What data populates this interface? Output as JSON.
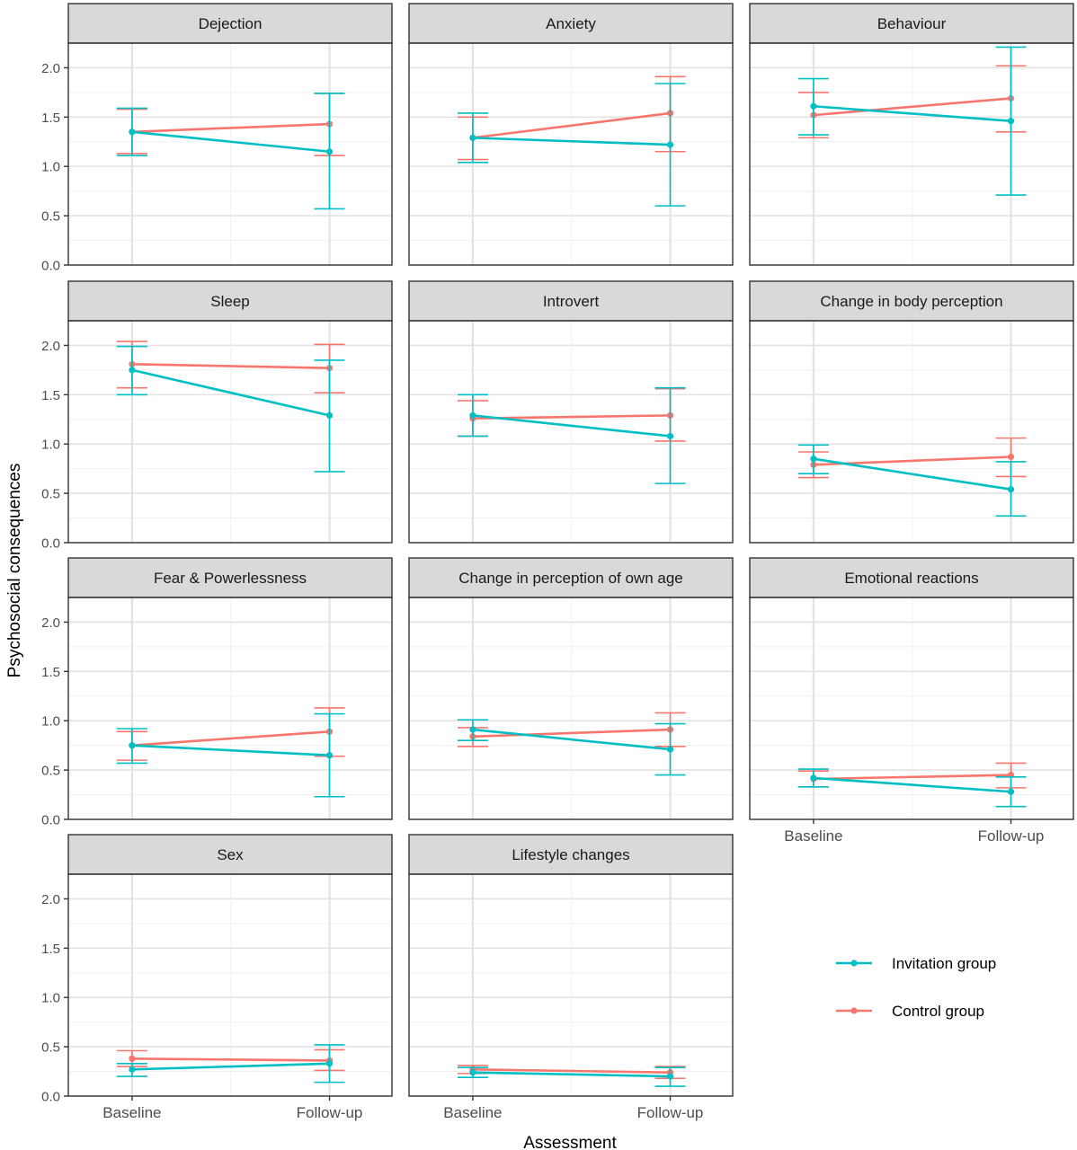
{
  "chart_data": {
    "type": "line",
    "layout": "faceted-grid-4x3",
    "ylabel": "Psychosocial consequences",
    "xlabel": "Assessment",
    "categories": [
      "Baseline",
      "Follow-up"
    ],
    "ylim": [
      0,
      2.25
    ],
    "yticks": [
      "0.0",
      "0.5",
      "1.0",
      "1.5",
      "2.0"
    ],
    "grid": true,
    "legend_placement": "bottom-right",
    "series_styles": [
      {
        "name": "Invitation group",
        "color": "#00BFC4"
      },
      {
        "name": "Control group",
        "color": "#F8766D"
      }
    ],
    "panels": [
      {
        "title": "Dejection",
        "series": [
          {
            "name": "Invitation group",
            "values": [
              1.35,
              1.15
            ],
            "lower": [
              1.11,
              0.57
            ],
            "upper": [
              1.59,
              1.74
            ]
          },
          {
            "name": "Control group",
            "values": [
              1.35,
              1.43
            ],
            "lower": [
              1.13,
              1.11
            ],
            "upper": [
              1.58,
              1.74
            ]
          }
        ]
      },
      {
        "title": "Anxiety",
        "series": [
          {
            "name": "Invitation group",
            "values": [
              1.29,
              1.22
            ],
            "lower": [
              1.04,
              0.6
            ],
            "upper": [
              1.54,
              1.84
            ]
          },
          {
            "name": "Control group",
            "values": [
              1.29,
              1.54
            ],
            "lower": [
              1.07,
              1.15
            ],
            "upper": [
              1.5,
              1.91
            ]
          }
        ]
      },
      {
        "title": "Behaviour",
        "series": [
          {
            "name": "Invitation group",
            "values": [
              1.61,
              1.46
            ],
            "lower": [
              1.32,
              0.71
            ],
            "upper": [
              1.89,
              2.21
            ]
          },
          {
            "name": "Control group",
            "values": [
              1.52,
              1.69
            ],
            "lower": [
              1.29,
              1.35
            ],
            "upper": [
              1.75,
              2.02
            ]
          }
        ]
      },
      {
        "title": "Sleep",
        "series": [
          {
            "name": "Invitation group",
            "values": [
              1.75,
              1.29
            ],
            "lower": [
              1.5,
              0.72
            ],
            "upper": [
              1.99,
              1.85
            ]
          },
          {
            "name": "Control group",
            "values": [
              1.81,
              1.77
            ],
            "lower": [
              1.57,
              1.52
            ],
            "upper": [
              2.04,
              2.01
            ]
          }
        ]
      },
      {
        "title": "Introvert",
        "series": [
          {
            "name": "Invitation group",
            "values": [
              1.29,
              1.08
            ],
            "lower": [
              1.08,
              0.6
            ],
            "upper": [
              1.5,
              1.57
            ]
          },
          {
            "name": "Control group",
            "values": [
              1.26,
              1.29
            ],
            "lower": [
              1.08,
              1.03
            ],
            "upper": [
              1.44,
              1.56
            ]
          }
        ]
      },
      {
        "title": "Change in body perception",
        "series": [
          {
            "name": "Invitation group",
            "values": [
              0.85,
              0.54
            ],
            "lower": [
              0.7,
              0.27
            ],
            "upper": [
              0.99,
              0.82
            ]
          },
          {
            "name": "Control group",
            "values": [
              0.79,
              0.87
            ],
            "lower": [
              0.66,
              0.67
            ],
            "upper": [
              0.92,
              1.06
            ]
          }
        ]
      },
      {
        "title": "Fear & Powerlessness",
        "series": [
          {
            "name": "Invitation group",
            "values": [
              0.75,
              0.65
            ],
            "lower": [
              0.57,
              0.23
            ],
            "upper": [
              0.92,
              1.07
            ]
          },
          {
            "name": "Control group",
            "values": [
              0.75,
              0.89
            ],
            "lower": [
              0.6,
              0.64
            ],
            "upper": [
              0.89,
              1.13
            ]
          }
        ]
      },
      {
        "title": "Change in perception of own age",
        "series": [
          {
            "name": "Invitation group",
            "values": [
              0.91,
              0.71
            ],
            "lower": [
              0.8,
              0.45
            ],
            "upper": [
              1.01,
              0.97
            ]
          },
          {
            "name": "Control group",
            "values": [
              0.84,
              0.91
            ],
            "lower": [
              0.74,
              0.74
            ],
            "upper": [
              0.93,
              1.08
            ]
          }
        ]
      },
      {
        "title": "Emotional reactions",
        "series": [
          {
            "name": "Invitation group",
            "values": [
              0.42,
              0.28
            ],
            "lower": [
              0.33,
              0.13
            ],
            "upper": [
              0.51,
              0.43
            ]
          },
          {
            "name": "Control group",
            "values": [
              0.41,
              0.45
            ],
            "lower": [
              0.33,
              0.32
            ],
            "upper": [
              0.49,
              0.57
            ]
          }
        ]
      },
      {
        "title": "Sex",
        "series": [
          {
            "name": "Invitation group",
            "values": [
              0.27,
              0.33
            ],
            "lower": [
              0.2,
              0.14
            ],
            "upper": [
              0.33,
              0.52
            ]
          },
          {
            "name": "Control group",
            "values": [
              0.38,
              0.36
            ],
            "lower": [
              0.3,
              0.26
            ],
            "upper": [
              0.46,
              0.47
            ]
          }
        ]
      },
      {
        "title": "Lifestyle changes",
        "series": [
          {
            "name": "Invitation group",
            "values": [
              0.24,
              0.2
            ],
            "lower": [
              0.19,
              0.1
            ],
            "upper": [
              0.29,
              0.29
            ]
          },
          {
            "name": "Control group",
            "values": [
              0.27,
              0.24
            ],
            "lower": [
              0.23,
              0.18
            ],
            "upper": [
              0.31,
              0.3
            ]
          }
        ]
      }
    ]
  }
}
